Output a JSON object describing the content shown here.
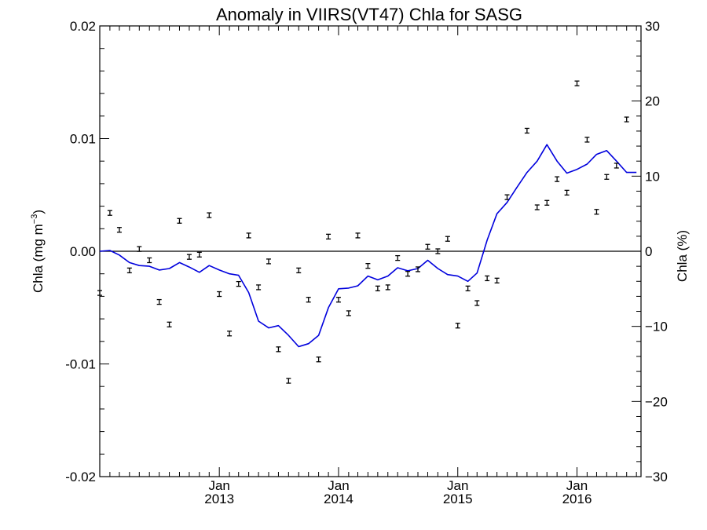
{
  "chart_data": {
    "type": "line",
    "title": "Anomaly in VIIRS(VT47) Chla for SASG",
    "ylabel_left": "Chla (mg m",
    "ylabel_left_superscript": "−3",
    "ylabel_left_close": ")",
    "ylabel_right": "Chla (%)",
    "xlim": [
      "2012-01-01",
      "2016-07-15"
    ],
    "ylim_left": [
      -0.02,
      0.02
    ],
    "ylim_right": [
      -30,
      30
    ],
    "x_ticks": [
      {
        "date": "2013-01-01",
        "month": "Jan",
        "year": "2013"
      },
      {
        "date": "2014-01-01",
        "month": "Jan",
        "year": "2014"
      },
      {
        "date": "2015-01-01",
        "month": "Jan",
        "year": "2015"
      },
      {
        "date": "2016-01-01",
        "month": "Jan",
        "year": "2016"
      }
    ],
    "y_ticks_left": [
      "0.02",
      "0.01",
      "0.00",
      "-0.01",
      "-0.02"
    ],
    "y_ticks_left_values": [
      0.02,
      0.01,
      0.0,
      -0.01,
      -0.02
    ],
    "y_ticks_right": [
      "30",
      "20",
      "10",
      "0",
      "−10",
      "−20",
      "−30"
    ],
    "y_ticks_right_values": [
      30,
      20,
      10,
      0,
      -10,
      -20,
      -30
    ],
    "zero_line": true,
    "grid": false,
    "series": [
      {
        "kind": "points_with_errorbars",
        "axis": "left",
        "color": "#000000",
        "points": [
          {
            "x": "2012-01-01",
            "y": -0.0037
          },
          {
            "x": "2012-02-01",
            "y": 0.0034
          },
          {
            "x": "2012-03-01",
            "y": 0.0019
          },
          {
            "x": "2012-04-01",
            "y": -0.0017
          },
          {
            "x": "2012-05-01",
            "y": 0.0002
          },
          {
            "x": "2012-06-01",
            "y": -0.0008
          },
          {
            "x": "2012-07-01",
            "y": -0.0045
          },
          {
            "x": "2012-08-01",
            "y": -0.0065
          },
          {
            "x": "2012-09-01",
            "y": 0.0027
          },
          {
            "x": "2012-10-01",
            "y": -0.0005
          },
          {
            "x": "2012-11-01",
            "y": -0.0003
          },
          {
            "x": "2012-12-01",
            "y": 0.0032
          },
          {
            "x": "2013-01-01",
            "y": -0.0038
          },
          {
            "x": "2013-02-01",
            "y": -0.0073
          },
          {
            "x": "2013-03-01",
            "y": -0.0029
          },
          {
            "x": "2013-04-01",
            "y": 0.0014
          },
          {
            "x": "2013-05-01",
            "y": -0.0032
          },
          {
            "x": "2013-06-01",
            "y": -0.0009
          },
          {
            "x": "2013-07-01",
            "y": -0.0087
          },
          {
            "x": "2013-08-01",
            "y": -0.0115
          },
          {
            "x": "2013-09-01",
            "y": -0.0017
          },
          {
            "x": "2013-10-01",
            "y": -0.0043
          },
          {
            "x": "2013-11-01",
            "y": -0.0096
          },
          {
            "x": "2013-12-01",
            "y": 0.0013
          },
          {
            "x": "2014-01-01",
            "y": -0.0043
          },
          {
            "x": "2014-02-01",
            "y": -0.0055
          },
          {
            "x": "2014-03-01",
            "y": 0.0014
          },
          {
            "x": "2014-04-01",
            "y": -0.0013
          },
          {
            "x": "2014-05-01",
            "y": -0.0033
          },
          {
            "x": "2014-06-01",
            "y": -0.0032
          },
          {
            "x": "2014-07-01",
            "y": -0.0006
          },
          {
            "x": "2014-08-01",
            "y": -0.002
          },
          {
            "x": "2014-09-01",
            "y": -0.0016
          },
          {
            "x": "2014-10-01",
            "y": 0.0004
          },
          {
            "x": "2014-11-01",
            "y": 0.0
          },
          {
            "x": "2014-12-01",
            "y": 0.0011
          },
          {
            "x": "2015-01-01",
            "y": -0.0066
          },
          {
            "x": "2015-02-01",
            "y": -0.0033
          },
          {
            "x": "2015-03-01",
            "y": -0.0046
          },
          {
            "x": "2015-04-01",
            "y": -0.0024
          },
          {
            "x": "2015-05-01",
            "y": -0.0026
          },
          {
            "x": "2015-06-01",
            "y": 0.0048
          },
          {
            "x": "2015-08-01",
            "y": 0.0107
          },
          {
            "x": "2015-09-01",
            "y": 0.0039
          },
          {
            "x": "2015-10-01",
            "y": 0.0043
          },
          {
            "x": "2015-11-01",
            "y": 0.0064
          },
          {
            "x": "2015-12-01",
            "y": 0.0052
          },
          {
            "x": "2016-01-01",
            "y": 0.0149
          },
          {
            "x": "2016-02-01",
            "y": 0.0099
          },
          {
            "x": "2016-03-01",
            "y": 0.0035
          },
          {
            "x": "2016-04-01",
            "y": 0.0066
          },
          {
            "x": "2016-05-01",
            "y": 0.0076
          },
          {
            "x": "2016-06-01",
            "y": 0.0117
          }
        ]
      },
      {
        "kind": "line",
        "axis": "right",
        "color": "#0000dd",
        "points": [
          {
            "x": "2012-01-01",
            "y": 0.0
          },
          {
            "x": "2012-02-01",
            "y": 0.1
          },
          {
            "x": "2012-03-01",
            "y": -0.5
          },
          {
            "x": "2012-04-01",
            "y": -1.5
          },
          {
            "x": "2012-05-01",
            "y": -1.9
          },
          {
            "x": "2012-06-01",
            "y": -2.0
          },
          {
            "x": "2012-07-01",
            "y": -2.5
          },
          {
            "x": "2012-08-01",
            "y": -2.3
          },
          {
            "x": "2012-09-01",
            "y": -1.5
          },
          {
            "x": "2012-10-01",
            "y": -2.1
          },
          {
            "x": "2012-11-01",
            "y": -2.8
          },
          {
            "x": "2012-12-01",
            "y": -1.9
          },
          {
            "x": "2013-01-01",
            "y": -2.5
          },
          {
            "x": "2013-02-01",
            "y": -3.0
          },
          {
            "x": "2013-03-01",
            "y": -3.2
          },
          {
            "x": "2013-04-01",
            "y": -5.5
          },
          {
            "x": "2013-05-01",
            "y": -9.3
          },
          {
            "x": "2013-06-01",
            "y": -10.2
          },
          {
            "x": "2013-07-01",
            "y": -9.9
          },
          {
            "x": "2013-08-01",
            "y": -11.2
          },
          {
            "x": "2013-09-01",
            "y": -12.7
          },
          {
            "x": "2013-10-01",
            "y": -12.3
          },
          {
            "x": "2013-11-01",
            "y": -11.2
          },
          {
            "x": "2013-12-01",
            "y": -7.5
          },
          {
            "x": "2014-01-01",
            "y": -5.0
          },
          {
            "x": "2014-02-01",
            "y": -4.9
          },
          {
            "x": "2014-03-01",
            "y": -4.6
          },
          {
            "x": "2014-04-01",
            "y": -3.3
          },
          {
            "x": "2014-05-01",
            "y": -3.8
          },
          {
            "x": "2014-06-01",
            "y": -3.3
          },
          {
            "x": "2014-07-01",
            "y": -2.2
          },
          {
            "x": "2014-08-01",
            "y": -2.6
          },
          {
            "x": "2014-09-01",
            "y": -2.3
          },
          {
            "x": "2014-10-01",
            "y": -1.2
          },
          {
            "x": "2014-11-01",
            "y": -2.3
          },
          {
            "x": "2014-12-01",
            "y": -3.1
          },
          {
            "x": "2015-01-01",
            "y": -3.3
          },
          {
            "x": "2015-02-01",
            "y": -4.0
          },
          {
            "x": "2015-03-01",
            "y": -2.9
          },
          {
            "x": "2015-04-01",
            "y": 1.5
          },
          {
            "x": "2015-05-01",
            "y": 5.0
          },
          {
            "x": "2015-06-01",
            "y": 6.5
          },
          {
            "x": "2015-07-01",
            "y": 8.5
          },
          {
            "x": "2015-08-01",
            "y": 10.5
          },
          {
            "x": "2015-09-01",
            "y": 12.0
          },
          {
            "x": "2015-10-01",
            "y": 14.2
          },
          {
            "x": "2015-11-01",
            "y": 12.0
          },
          {
            "x": "2015-12-01",
            "y": 10.4
          },
          {
            "x": "2016-01-01",
            "y": 10.9
          },
          {
            "x": "2016-02-01",
            "y": 11.6
          },
          {
            "x": "2016-03-01",
            "y": 12.9
          },
          {
            "x": "2016-04-01",
            "y": 13.4
          },
          {
            "x": "2016-05-01",
            "y": 12.0
          },
          {
            "x": "2016-06-01",
            "y": 10.5
          },
          {
            "x": "2016-07-01",
            "y": 10.5
          }
        ]
      }
    ]
  }
}
